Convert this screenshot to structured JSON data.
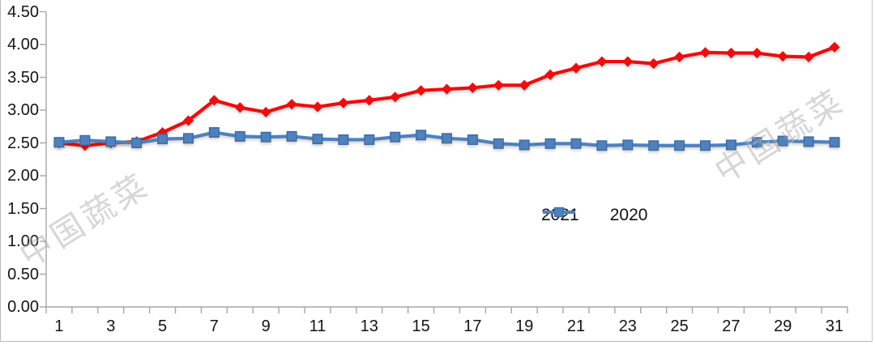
{
  "figure": {
    "background": "#ffffff",
    "border_color": "#b9b9b9"
  },
  "style": {
    "axis_line_color": "#a6a6a6",
    "tick_label_color": "#141414",
    "legend_text_color": "#111111",
    "watermark_color": "#9e9e9e"
  },
  "watermarks": [
    {
      "text": "中国蔬菜"
    },
    {
      "text": "中国蔬菜"
    }
  ],
  "legend": {
    "items": [
      {
        "label": "2021",
        "marker": "diamond",
        "color": "#ee0c0c"
      },
      {
        "label": "2020",
        "marker": "square",
        "color": "#4f81bd"
      }
    ]
  },
  "chart_data": {
    "type": "line",
    "title": "",
    "xlabel": "",
    "ylabel": "",
    "grid": false,
    "legend_position": "bottom-center",
    "ylim": [
      0,
      4.5
    ],
    "y_tick_labels": [
      "0.00",
      "0.50",
      "1.00",
      "1.50",
      "2.00",
      "2.50",
      "3.00",
      "3.50",
      "4.00",
      "4.50"
    ],
    "categories": [
      1,
      2,
      3,
      4,
      5,
      6,
      7,
      8,
      9,
      10,
      11,
      12,
      13,
      14,
      15,
      16,
      17,
      18,
      19,
      20,
      21,
      22,
      23,
      24,
      25,
      26,
      27,
      28,
      29,
      30,
      31
    ],
    "x_tick_labels": [
      "1",
      "3",
      "5",
      "7",
      "9",
      "11",
      "13",
      "15",
      "17",
      "19",
      "21",
      "23",
      "25",
      "27",
      "29",
      "31"
    ],
    "series": [
      {
        "name": "2021",
        "color": "#ee0c0c",
        "marker": "diamond",
        "values": [
          2.5,
          2.46,
          2.5,
          2.52,
          2.66,
          2.84,
          3.15,
          3.04,
          2.97,
          3.09,
          3.05,
          3.11,
          3.15,
          3.2,
          3.3,
          3.32,
          3.34,
          3.38,
          3.38,
          3.54,
          3.64,
          3.74,
          3.74,
          3.71,
          3.81,
          3.88,
          3.87,
          3.87,
          3.82,
          3.81,
          3.96
        ]
      },
      {
        "name": "2020",
        "color": "#4f81bd",
        "marker_stroke": "#3e6ba3",
        "marker": "square",
        "values": [
          2.51,
          2.54,
          2.52,
          2.5,
          2.56,
          2.57,
          2.66,
          2.6,
          2.59,
          2.6,
          2.56,
          2.55,
          2.55,
          2.59,
          2.62,
          2.57,
          2.55,
          2.49,
          2.47,
          2.49,
          2.49,
          2.46,
          2.47,
          2.46,
          2.46,
          2.46,
          2.47,
          2.51,
          2.53,
          2.52,
          2.51
        ]
      }
    ]
  }
}
